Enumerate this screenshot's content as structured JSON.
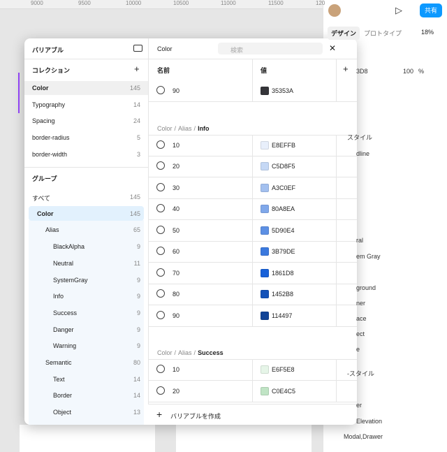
{
  "ruler": {
    "ticks": [
      "9000",
      "9500",
      "10000",
      "10500",
      "11000",
      "11500",
      "120"
    ]
  },
  "toolbar": {
    "tabs": [
      "デザイン",
      "プロトタイプ"
    ],
    "zoom": "18%",
    "share": "共有"
  },
  "right_panel": {
    "fragments": [
      "3D8",
      "100",
      "%",
      "スタイル",
      "dline",
      "ral",
      "em Gray",
      "ground",
      "ner",
      "ace",
      "ect",
      "e",
      "-スタイル",
      "er",
      "Elevation",
      "Modal,Drawer"
    ]
  },
  "sidebar": {
    "title": "バリアブル",
    "collections_title": "コレクション",
    "collections": [
      {
        "name": "Color",
        "count": "145"
      },
      {
        "name": "Typography",
        "count": "14"
      },
      {
        "name": "Spacing",
        "count": "24"
      },
      {
        "name": "border-radius",
        "count": "5"
      },
      {
        "name": "border-width",
        "count": "3"
      }
    ],
    "groups_title": "グループ",
    "groups": [
      {
        "name": "すべて",
        "count": "145"
      },
      {
        "name": "Color",
        "count": "145"
      },
      {
        "name": "Alias",
        "count": "65"
      },
      {
        "name": "BlackAlpha",
        "count": "9"
      },
      {
        "name": "Neutral",
        "count": "11"
      },
      {
        "name": "SystemGray",
        "count": "9"
      },
      {
        "name": "Info",
        "count": "9"
      },
      {
        "name": "Success",
        "count": "9"
      },
      {
        "name": "Danger",
        "count": "9"
      },
      {
        "name": "Warning",
        "count": "9"
      },
      {
        "name": "Semantic",
        "count": "80"
      },
      {
        "name": "Text",
        "count": "14"
      },
      {
        "name": "Border",
        "count": "14"
      },
      {
        "name": "Object",
        "count": "13"
      }
    ]
  },
  "table": {
    "collection": "Color",
    "search_placeholder": "検索",
    "headers": [
      "名前",
      "値"
    ],
    "separator": "/",
    "sections": [
      {
        "breadcrumb": [],
        "rows": [
          {
            "name": "90",
            "value": "35353A"
          }
        ]
      },
      {
        "breadcrumb": [
          "Color",
          "Alias",
          "Info"
        ],
        "rows": [
          {
            "name": "10",
            "value": "E8EFFB"
          },
          {
            "name": "20",
            "value": "C5D8F5"
          },
          {
            "name": "30",
            "value": "A3C0EF"
          },
          {
            "name": "40",
            "value": "80A8EA"
          },
          {
            "name": "50",
            "value": "5D90E4"
          },
          {
            "name": "60",
            "value": "3B79DE"
          },
          {
            "name": "70",
            "value": "1861D8"
          },
          {
            "name": "80",
            "value": "1452B8"
          },
          {
            "name": "90",
            "value": "114497"
          }
        ]
      },
      {
        "breadcrumb": [
          "Color",
          "Alias",
          "Success"
        ],
        "rows": [
          {
            "name": "10",
            "value": "E6F5E8"
          },
          {
            "name": "20",
            "value": "C0E4C5"
          }
        ]
      }
    ]
  },
  "footer": {
    "create": "バリアブルを作成"
  }
}
